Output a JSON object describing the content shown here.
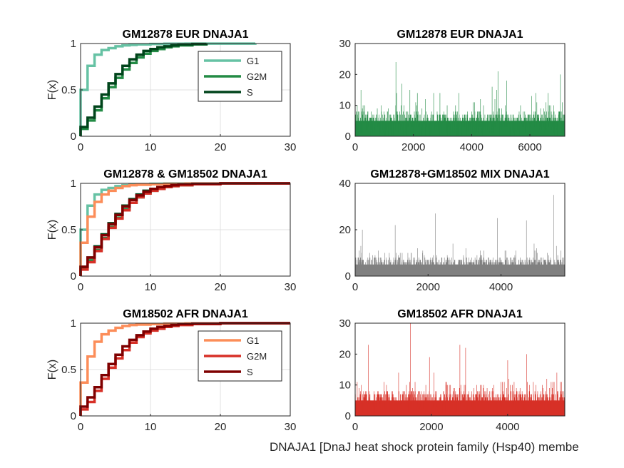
{
  "figure": {
    "caption": "DNAJA1 [DnaJ heat shock protein family (Hsp40) membe"
  },
  "chart_data": [
    {
      "type": "line",
      "subtype": "ecdf-stairs",
      "title": "GM12878 EUR DNAJA1",
      "ylabel": "F(x)",
      "xlim": [
        0,
        30
      ],
      "ylim": [
        0,
        1
      ],
      "xticks": [
        0,
        10,
        20,
        30
      ],
      "yticks": [
        0,
        0.5,
        1
      ],
      "grid": true,
      "legend": "top-right",
      "series": [
        {
          "name": "G1",
          "color": "#66c2a4",
          "x_end": 25,
          "x": [
            0,
            1,
            2,
            3,
            4,
            5,
            6,
            7,
            8,
            10,
            12,
            15,
            25
          ],
          "y": [
            0.5,
            0.76,
            0.88,
            0.93,
            0.95,
            0.97,
            0.98,
            0.985,
            0.99,
            0.995,
            0.998,
            0.999,
            1.0
          ]
        },
        {
          "name": "G2M",
          "color": "#238b45",
          "x_end": 18,
          "x": [
            0,
            1,
            2,
            3,
            4,
            5,
            6,
            7,
            8,
            9,
            10,
            11,
            12,
            13,
            14,
            16,
            18
          ],
          "y": [
            0.08,
            0.17,
            0.28,
            0.41,
            0.53,
            0.63,
            0.72,
            0.79,
            0.85,
            0.89,
            0.92,
            0.94,
            0.96,
            0.97,
            0.98,
            0.99,
            1.0
          ]
        },
        {
          "name": "S",
          "color": "#00441b",
          "x_end": 18,
          "x": [
            0,
            1,
            2,
            3,
            4,
            5,
            6,
            7,
            8,
            9,
            10,
            11,
            12,
            13,
            14,
            16,
            18
          ],
          "y": [
            0.1,
            0.2,
            0.32,
            0.45,
            0.57,
            0.67,
            0.76,
            0.83,
            0.88,
            0.92,
            0.94,
            0.96,
            0.97,
            0.98,
            0.99,
            0.995,
            1.0
          ]
        }
      ]
    },
    {
      "type": "bar",
      "title": "GM12878 EUR DNAJA1",
      "xlim": [
        0,
        7200
      ],
      "ylim": [
        0,
        30
      ],
      "xticks": [
        0,
        2000,
        4000,
        6000
      ],
      "yticks": [
        0,
        10,
        20,
        30
      ],
      "color": "#238b45",
      "n_cells": 7200,
      "max_value": 24,
      "notable_peaks": [
        [
          1400,
          24
        ],
        [
          1600,
          17
        ],
        [
          4900,
          21
        ],
        [
          5200,
          18
        ],
        [
          4700,
          16
        ],
        [
          7050,
          20
        ],
        [
          200,
          15
        ]
      ]
    },
    {
      "type": "line",
      "subtype": "ecdf-stairs",
      "title": "GM12878 & GM18502 DNAJA1",
      "ylabel": "F(x)",
      "xlim": [
        0,
        30
      ],
      "ylim": [
        0,
        1
      ],
      "xticks": [
        0,
        10,
        20,
        30
      ],
      "yticks": [
        0,
        0.5,
        1
      ],
      "grid": true,
      "series": [
        {
          "color": "#66c2a4",
          "x_end": 25,
          "x": [
            0,
            1,
            2,
            3,
            4,
            5,
            6,
            7,
            8,
            10,
            12,
            15,
            25
          ],
          "y": [
            0.5,
            0.76,
            0.88,
            0.93,
            0.95,
            0.97,
            0.98,
            0.985,
            0.99,
            0.995,
            0.998,
            0.999,
            1.0
          ]
        },
        {
          "color": "#238b45",
          "x_end": 18,
          "x": [
            0,
            1,
            2,
            3,
            4,
            5,
            6,
            7,
            8,
            9,
            10,
            11,
            12,
            13,
            14,
            16,
            18
          ],
          "y": [
            0.08,
            0.17,
            0.28,
            0.41,
            0.53,
            0.63,
            0.72,
            0.79,
            0.85,
            0.89,
            0.92,
            0.94,
            0.96,
            0.97,
            0.98,
            0.99,
            1.0
          ]
        },
        {
          "color": "#00441b",
          "x_end": 18,
          "x": [
            0,
            1,
            2,
            3,
            4,
            5,
            6,
            7,
            8,
            9,
            10,
            11,
            12,
            13,
            14,
            16,
            18
          ],
          "y": [
            0.1,
            0.2,
            0.32,
            0.45,
            0.57,
            0.67,
            0.76,
            0.83,
            0.88,
            0.92,
            0.94,
            0.96,
            0.97,
            0.98,
            0.99,
            0.995,
            1.0
          ]
        },
        {
          "color": "#fc8d59",
          "x_end": 30,
          "x": [
            0,
            1,
            2,
            3,
            4,
            5,
            6,
            7,
            8,
            10,
            12,
            15,
            20
          ],
          "y": [
            0.36,
            0.64,
            0.8,
            0.88,
            0.92,
            0.95,
            0.97,
            0.98,
            0.985,
            0.99,
            0.995,
            0.998,
            1.0
          ]
        },
        {
          "color": "#d73027",
          "x_end": 30,
          "x": [
            0,
            1,
            2,
            3,
            4,
            5,
            6,
            7,
            8,
            9,
            10,
            11,
            12,
            13,
            14,
            16,
            20
          ],
          "y": [
            0.07,
            0.15,
            0.27,
            0.4,
            0.52,
            0.62,
            0.71,
            0.79,
            0.85,
            0.89,
            0.92,
            0.94,
            0.96,
            0.97,
            0.98,
            0.99,
            1.0
          ]
        },
        {
          "color": "#7f0000",
          "x_end": 30,
          "x": [
            0,
            1,
            2,
            3,
            4,
            5,
            6,
            7,
            8,
            9,
            10,
            11,
            12,
            13,
            14,
            16,
            20
          ],
          "y": [
            0.1,
            0.2,
            0.31,
            0.44,
            0.56,
            0.66,
            0.75,
            0.82,
            0.87,
            0.91,
            0.94,
            0.96,
            0.97,
            0.98,
            0.99,
            0.995,
            1.0
          ]
        }
      ]
    },
    {
      "type": "bar",
      "title": "GM12878+GM18502 MIX DNAJA1",
      "xlim": [
        0,
        5750
      ],
      "ylim": [
        0,
        40
      ],
      "xticks": [
        0,
        2000,
        4000
      ],
      "yticks": [
        0,
        20,
        40
      ],
      "color": "#808080",
      "n_cells": 5750,
      "max_value": 35,
      "notable_peaks": [
        [
          5450,
          35
        ],
        [
          2200,
          27
        ],
        [
          3900,
          25
        ],
        [
          1100,
          22
        ],
        [
          4700,
          24
        ],
        [
          200,
          20
        ]
      ]
    },
    {
      "type": "line",
      "subtype": "ecdf-stairs",
      "title": "GM18502 AFR DNAJA1",
      "ylabel": "F(x)",
      "xlim": [
        0,
        30
      ],
      "ylim": [
        0,
        1
      ],
      "xticks": [
        0,
        10,
        20,
        30
      ],
      "yticks": [
        0,
        0.5,
        1
      ],
      "grid": true,
      "legend": "top-right",
      "series": [
        {
          "name": "G1",
          "color": "#fc8d59",
          "x_end": 30,
          "x": [
            0,
            1,
            2,
            3,
            4,
            5,
            6,
            7,
            8,
            10,
            12,
            15,
            20
          ],
          "y": [
            0.36,
            0.64,
            0.8,
            0.88,
            0.92,
            0.95,
            0.97,
            0.98,
            0.985,
            0.99,
            0.995,
            0.998,
            1.0
          ]
        },
        {
          "name": "G2M",
          "color": "#d73027",
          "x_end": 30,
          "x": [
            0,
            1,
            2,
            3,
            4,
            5,
            6,
            7,
            8,
            9,
            10,
            11,
            12,
            13,
            14,
            16,
            20
          ],
          "y": [
            0.07,
            0.15,
            0.27,
            0.4,
            0.52,
            0.62,
            0.71,
            0.79,
            0.85,
            0.89,
            0.92,
            0.94,
            0.96,
            0.97,
            0.98,
            0.99,
            1.0
          ]
        },
        {
          "name": "S",
          "color": "#7f0000",
          "x_end": 30,
          "x": [
            0,
            1,
            2,
            3,
            4,
            5,
            6,
            7,
            8,
            9,
            10,
            11,
            12,
            13,
            14,
            16,
            20
          ],
          "y": [
            0.1,
            0.2,
            0.31,
            0.44,
            0.56,
            0.66,
            0.75,
            0.82,
            0.87,
            0.91,
            0.94,
            0.96,
            0.97,
            0.98,
            0.99,
            0.995,
            1.0
          ]
        }
      ]
    },
    {
      "type": "bar",
      "title": "GM18502 AFR DNAJA1",
      "xlim": [
        0,
        5500
      ],
      "ylim": [
        0,
        30
      ],
      "xticks": [
        0,
        2000,
        4000
      ],
      "yticks": [
        0,
        10,
        20,
        30
      ],
      "color": "#d73027",
      "n_cells": 5500,
      "max_value": 30,
      "notable_peaks": [
        [
          1450,
          30
        ],
        [
          350,
          23
        ],
        [
          2750,
          23
        ],
        [
          2900,
          22
        ],
        [
          1950,
          19
        ],
        [
          4500,
          20
        ],
        [
          4000,
          18
        ]
      ]
    }
  ]
}
